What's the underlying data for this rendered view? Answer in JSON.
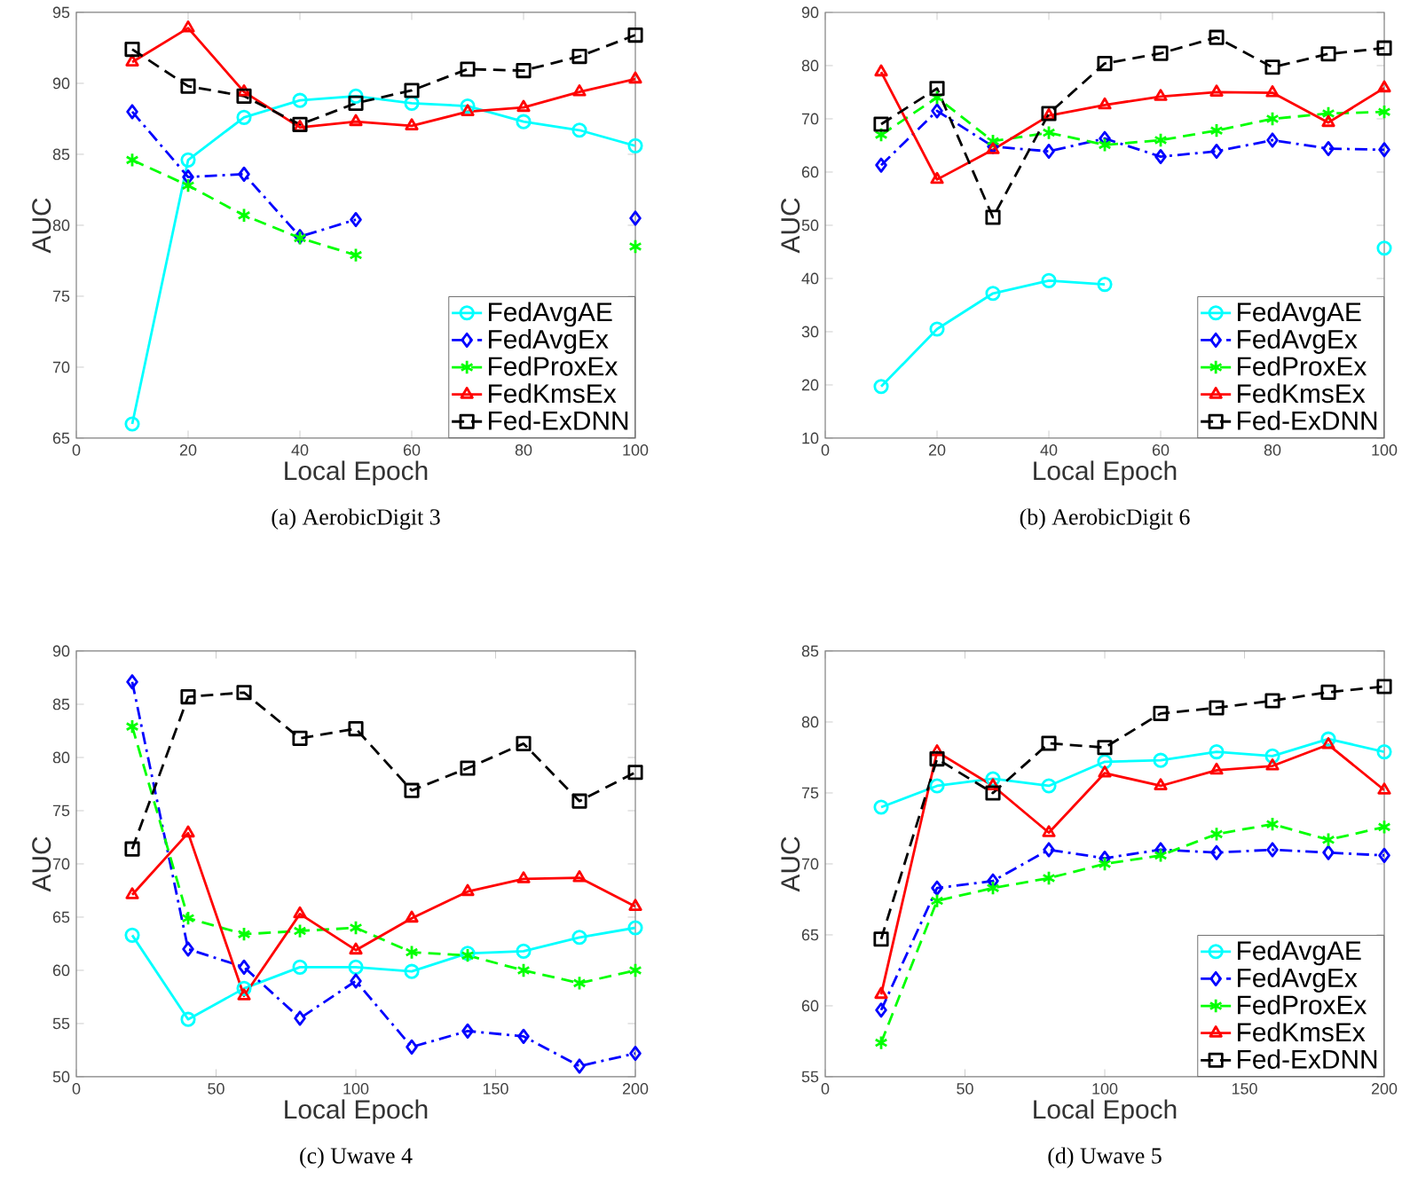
{
  "chart_data": [
    {
      "type": "line",
      "title": "(a) AerobicDigit 3",
      "xlabel": "Local Epoch",
      "ylabel": "AUC",
      "x": [
        10,
        20,
        30,
        40,
        50,
        60,
        70,
        80,
        90,
        100
      ],
      "xlim": [
        0,
        100
      ],
      "ylim": [
        65,
        95
      ],
      "xticks": [
        0,
        20,
        40,
        60,
        80,
        100
      ],
      "yticks": [
        65,
        70,
        75,
        80,
        85,
        90,
        95
      ],
      "legend": "bottom right",
      "series": [
        {
          "name": "FedAvgAE",
          "color": "#00ffff",
          "marker": "circle",
          "line_style": "solid",
          "values": [
            66.0,
            84.6,
            87.6,
            88.8,
            89.1,
            88.6,
            88.4,
            87.3,
            86.7,
            85.6
          ]
        },
        {
          "name": "FedAvgEx",
          "color": "#0000ff",
          "marker": "diamond",
          "line_style": "dashdot",
          "values": [
            88.0,
            83.4,
            83.6,
            79.2,
            80.4,
            null,
            null,
            null,
            null,
            80.5
          ]
        },
        {
          "name": "FedProxEx",
          "color": "#00ff00",
          "marker": "cross",
          "line_style": "dashed",
          "values": [
            84.6,
            82.8,
            80.7,
            79.1,
            77.9,
            null,
            null,
            null,
            null,
            78.5
          ]
        },
        {
          "name": "FedKmsEx",
          "color": "#ff0000",
          "marker": "triangle",
          "line_style": "solid",
          "values": [
            91.5,
            93.9,
            89.4,
            86.9,
            87.3,
            87.0,
            88.0,
            88.3,
            89.4,
            90.3
          ]
        },
        {
          "name": "Fed-ExDNN",
          "color": "#000000",
          "marker": "square",
          "line_style": "dashed",
          "values": [
            92.4,
            89.8,
            89.1,
            87.1,
            88.6,
            89.5,
            91.0,
            90.9,
            91.9,
            93.4
          ]
        }
      ]
    },
    {
      "type": "line",
      "title": "(b) AerobicDigit 6",
      "xlabel": "Local Epoch",
      "ylabel": "AUC",
      "x": [
        10,
        20,
        30,
        40,
        50,
        60,
        70,
        80,
        90,
        100
      ],
      "xlim": [
        0,
        100
      ],
      "ylim": [
        10,
        90
      ],
      "xticks": [
        0,
        20,
        40,
        60,
        80,
        100
      ],
      "yticks": [
        10,
        20,
        30,
        40,
        50,
        60,
        70,
        80,
        90
      ],
      "legend": "bottom right",
      "series": [
        {
          "name": "FedAvgAE",
          "color": "#00ffff",
          "marker": "circle",
          "line_style": "solid",
          "values": [
            19.7,
            30.5,
            37.2,
            39.6,
            38.9,
            null,
            null,
            null,
            null,
            45.7
          ]
        },
        {
          "name": "FedAvgEx",
          "color": "#0000ff",
          "marker": "diamond",
          "line_style": "dashdot",
          "values": [
            61.3,
            71.5,
            64.8,
            63.9,
            66.3,
            62.9,
            63.9,
            66.0,
            64.4,
            64.2
          ]
        },
        {
          "name": "FedProxEx",
          "color": "#00ff00",
          "marker": "cross",
          "line_style": "dashed",
          "values": [
            67.0,
            74.0,
            65.8,
            67.4,
            65.1,
            66.0,
            67.8,
            70.0,
            71.0,
            71.3
          ]
        },
        {
          "name": "FedKmsEx",
          "color": "#ff0000",
          "marker": "triangle",
          "line_style": "solid",
          "values": [
            78.8,
            58.6,
            64.2,
            70.6,
            72.6,
            74.2,
            75.0,
            74.9,
            69.3,
            75.8
          ]
        },
        {
          "name": "Fed-ExDNN",
          "color": "#000000",
          "marker": "square",
          "line_style": "dashed",
          "values": [
            69.0,
            75.7,
            51.5,
            71.0,
            80.4,
            82.3,
            85.3,
            79.7,
            82.2,
            83.3
          ]
        }
      ]
    },
    {
      "type": "line",
      "title": "(c) Uwave 4",
      "xlabel": "Local Epoch",
      "ylabel": "AUC",
      "x": [
        20,
        40,
        60,
        80,
        100,
        120,
        140,
        160,
        180,
        200
      ],
      "xlim": [
        0,
        200
      ],
      "ylim": [
        50,
        90
      ],
      "xticks": [
        0,
        50,
        100,
        150,
        200
      ],
      "yticks": [
        50,
        55,
        60,
        65,
        70,
        75,
        80,
        85,
        90
      ],
      "series": [
        {
          "color": "#00ffff",
          "marker": "circle",
          "line_style": "solid",
          "values": [
            63.3,
            55.4,
            58.3,
            60.3,
            60.3,
            59.9,
            61.6,
            61.8,
            63.1,
            64.0
          ]
        },
        {
          "color": "#0000ff",
          "marker": "diamond",
          "line_style": "dashdot",
          "values": [
            87.1,
            62.0,
            60.3,
            55.5,
            59.0,
            52.8,
            54.3,
            53.8,
            51.0,
            52.2
          ]
        },
        {
          "color": "#00ff00",
          "marker": "cross",
          "line_style": "dashed",
          "values": [
            82.9,
            64.9,
            63.4,
            63.7,
            64.0,
            61.7,
            61.4,
            60.0,
            58.8,
            60.0
          ]
        },
        {
          "color": "#ff0000",
          "marker": "triangle",
          "line_style": "solid",
          "values": [
            67.1,
            72.9,
            57.6,
            65.3,
            61.9,
            64.9,
            67.4,
            68.6,
            68.7,
            66.0
          ]
        },
        {
          "color": "#000000",
          "marker": "square",
          "line_style": "dashed",
          "values": [
            71.4,
            85.7,
            86.1,
            81.8,
            82.7,
            76.9,
            79.0,
            81.3,
            75.9,
            78.6
          ]
        }
      ]
    },
    {
      "type": "line",
      "title": "(d) Uwave 5",
      "xlabel": "Local Epoch",
      "ylabel": "AUC",
      "x": [
        20,
        40,
        60,
        80,
        100,
        120,
        140,
        160,
        180,
        200
      ],
      "xlim": [
        0,
        200
      ],
      "ylim": [
        55,
        85
      ],
      "xticks": [
        0,
        50,
        100,
        150,
        200
      ],
      "yticks": [
        55,
        60,
        65,
        70,
        75,
        80,
        85
      ],
      "legend": "bottom right",
      "series": [
        {
          "name": "FedAvgAE",
          "color": "#00ffff",
          "marker": "circle",
          "line_style": "solid",
          "values": [
            74.0,
            75.5,
            76.0,
            75.5,
            77.2,
            77.3,
            77.9,
            77.6,
            78.8,
            77.9
          ]
        },
        {
          "name": "FedAvgEx",
          "color": "#0000ff",
          "marker": "diamond",
          "line_style": "dashdot",
          "values": [
            59.7,
            68.3,
            68.8,
            71.0,
            70.4,
            71.0,
            70.8,
            71.0,
            70.8,
            70.6
          ]
        },
        {
          "name": "FedProxEx",
          "color": "#00ff00",
          "marker": "cross",
          "line_style": "dashed",
          "values": [
            57.4,
            67.4,
            68.3,
            69.0,
            70.0,
            70.6,
            72.1,
            72.8,
            71.7,
            72.6
          ]
        },
        {
          "name": "FedKmsEx",
          "color": "#ff0000",
          "marker": "triangle",
          "line_style": "solid",
          "values": [
            60.8,
            77.9,
            75.5,
            72.2,
            76.4,
            75.5,
            76.6,
            76.9,
            78.4,
            75.2
          ]
        },
        {
          "name": "Fed-ExDNN",
          "color": "#000000",
          "marker": "square",
          "line_style": "dashed",
          "values": [
            64.7,
            77.4,
            75.0,
            78.5,
            78.2,
            80.6,
            81.0,
            81.5,
            82.1,
            82.5
          ]
        }
      ]
    }
  ]
}
